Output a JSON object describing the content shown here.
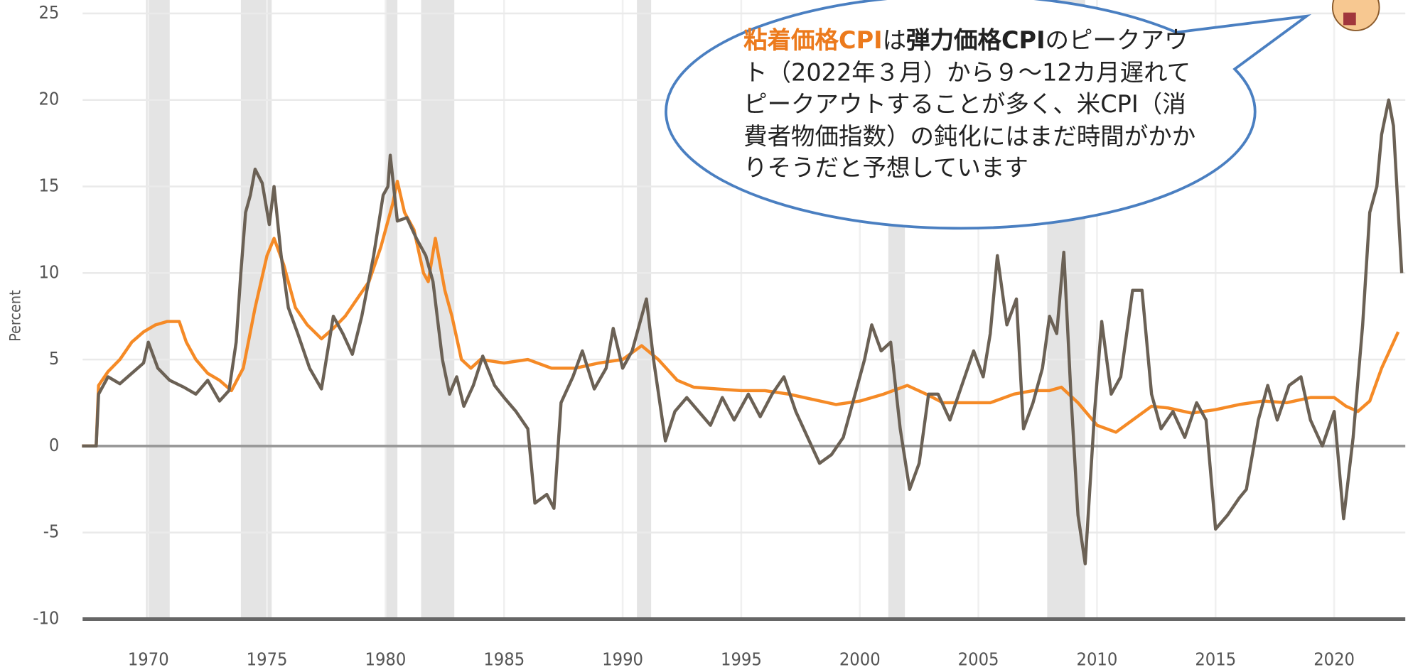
{
  "chart_data": {
    "type": "line",
    "y_label": "Percent",
    "annotation": [
      "粘着価格CPI",
      "は",
      "弾力価格CPI",
      "のピークアウト（2022年３月）から９～12カ月遅れてピークアウトすることが多く、米CPI（消費者物価指数）の鈍化にはまだ時間がかかりそうだと予想しています"
    ],
    "xlim": [
      1967,
      2023
    ],
    "xticks": [
      1970,
      1975,
      1980,
      1985,
      1990,
      1995,
      2000,
      2005,
      2010,
      2015,
      2020
    ],
    "ylim": [
      -10,
      25
    ],
    "yticks": [
      -10,
      -5,
      0,
      5,
      10,
      15,
      20,
      25
    ],
    "grid": true,
    "recession_color": "#e4e4e4",
    "recessions": [
      [
        1969.9,
        1970.9
      ],
      [
        1973.9,
        1975.2
      ],
      [
        1980.0,
        1980.5
      ],
      [
        1981.5,
        1982.9
      ],
      [
        1990.6,
        1991.2
      ],
      [
        2001.2,
        2001.9
      ],
      [
        2007.9,
        2009.5
      ]
    ],
    "series": [
      {
        "name": "粘着価格CPI",
        "color": "#f58a26",
        "x": [
          1967.2,
          1967.8,
          1967.9,
          1968.3,
          1968.8,
          1969.3,
          1969.8,
          1970.3,
          1970.8,
          1971.3,
          1971.6,
          1972.0,
          1972.5,
          1973.0,
          1973.5,
          1974.0,
          1974.5,
          1975.0,
          1975.3,
          1975.7,
          1976.2,
          1976.7,
          1977.3,
          1977.8,
          1978.3,
          1978.8,
          1979.3,
          1979.8,
          1980.3,
          1980.5,
          1980.8,
          1981.2,
          1981.6,
          1981.8,
          1982.1,
          1982.5,
          1982.8,
          1983.2,
          1983.6,
          1984.0,
          1985,
          1986,
          1987,
          1988,
          1989,
          1990,
          1990.8,
          1991.5,
          1992.3,
          1993,
          1994,
          1995,
          1996,
          1997,
          1998,
          1999,
          2000,
          2001,
          2002,
          2002.8,
          2003.5,
          2004.5,
          2005.5,
          2006.5,
          2007.3,
          2008,
          2008.5,
          2009.2,
          2010,
          2010.8,
          2011.5,
          2012.3,
          2013,
          2014,
          2015,
          2016,
          2017,
          2018,
          2019,
          2020,
          2020.5,
          2021,
          2021.5,
          2022,
          2022.7
        ],
        "values": [
          0,
          0,
          3.5,
          4.3,
          5.0,
          6.0,
          6.6,
          7.0,
          7.2,
          7.2,
          6.0,
          5.0,
          4.2,
          3.8,
          3.2,
          4.5,
          8.0,
          11.0,
          12.0,
          10.5,
          8.0,
          7.0,
          6.2,
          6.8,
          7.5,
          8.5,
          9.5,
          11.5,
          14.0,
          15.3,
          13.5,
          12.5,
          10.0,
          9.5,
          12.0,
          9.0,
          7.5,
          5.0,
          4.5,
          5.0,
          4.8,
          5.0,
          4.5,
          4.5,
          4.8,
          5.0,
          5.8,
          5.0,
          3.8,
          3.4,
          3.3,
          3.2,
          3.2,
          3.0,
          2.7,
          2.4,
          2.6,
          3.0,
          3.5,
          3.0,
          2.5,
          2.5,
          2.5,
          3.0,
          3.2,
          3.2,
          3.4,
          2.5,
          1.2,
          0.8,
          1.5,
          2.3,
          2.2,
          1.9,
          2.1,
          2.4,
          2.6,
          2.5,
          2.8,
          2.8,
          2.3,
          2.0,
          2.6,
          4.5,
          6.6
        ]
      },
      {
        "name": "弾力価格CPI",
        "color": "#6b6155",
        "x": [
          1967.2,
          1967.8,
          1967.9,
          1968.3,
          1968.8,
          1969.3,
          1969.8,
          1970.0,
          1970.4,
          1970.9,
          1971.5,
          1972.0,
          1972.5,
          1973.0,
          1973.4,
          1973.7,
          1973.9,
          1974.1,
          1974.3,
          1974.5,
          1974.8,
          1975.1,
          1975.3,
          1975.6,
          1975.9,
          1976.3,
          1976.8,
          1977.3,
          1977.8,
          1978.2,
          1978.6,
          1979.0,
          1979.5,
          1979.9,
          1980.1,
          1980.2,
          1980.5,
          1980.9,
          1981.3,
          1981.7,
          1982.0,
          1982.4,
          1982.7,
          1983.0,
          1983.3,
          1983.7,
          1984.1,
          1984.6,
          1985.0,
          1985.5,
          1986.0,
          1986.3,
          1986.8,
          1987.1,
          1987.4,
          1987.9,
          1988.3,
          1988.8,
          1989.3,
          1989.6,
          1990.0,
          1990.4,
          1990.8,
          1991.0,
          1991.3,
          1991.8,
          1992.2,
          1992.7,
          1993.2,
          1993.7,
          1994.2,
          1994.7,
          1995.3,
          1995.8,
          1996.3,
          1996.8,
          1997.3,
          1997.8,
          1998.3,
          1998.8,
          1999.3,
          1999.8,
          2000.2,
          2000.5,
          2000.9,
          2001.3,
          2001.7,
          2002.1,
          2002.5,
          2002.9,
          2003.3,
          2003.8,
          2004.3,
          2004.8,
          2005.2,
          2005.5,
          2005.8,
          2006.2,
          2006.6,
          2006.9,
          2007.3,
          2007.7,
          2008.0,
          2008.3,
          2008.6,
          2008.9,
          2009.2,
          2009.5,
          2009.9,
          2010.2,
          2010.6,
          2011.0,
          2011.5,
          2011.9,
          2012.3,
          2012.7,
          2013.2,
          2013.7,
          2014.2,
          2014.6,
          2015.0,
          2015.5,
          2016.0,
          2016.3,
          2016.8,
          2017.2,
          2017.6,
          2018.1,
          2018.6,
          2019.0,
          2019.5,
          2020.0,
          2020.4,
          2020.8,
          2021.2,
          2021.5,
          2021.8,
          2022.0,
          2022.3,
          2022.5,
          2022.85
        ],
        "values": [
          0,
          0,
          3,
          4,
          3.6,
          4.2,
          4.8,
          6.0,
          4.5,
          3.8,
          3.4,
          3.0,
          3.8,
          2.6,
          3.2,
          6,
          10,
          13.5,
          14.5,
          16.0,
          15.2,
          12.8,
          15.0,
          11,
          8,
          6.5,
          4.5,
          3.3,
          7.5,
          6.5,
          5.3,
          7.5,
          11.0,
          14.5,
          15,
          16.8,
          13.0,
          13.2,
          12.0,
          11,
          9.5,
          5,
          3.0,
          4.0,
          2.3,
          3.5,
          5.2,
          3.5,
          2.8,
          2.0,
          1.0,
          -3.3,
          -2.8,
          -3.6,
          2.5,
          4.0,
          5.5,
          3.3,
          4.5,
          6.8,
          4.5,
          5.5,
          7.5,
          8.5,
          5.0,
          0.3,
          2.0,
          2.8,
          2.0,
          1.2,
          2.8,
          1.5,
          3.0,
          1.7,
          3.0,
          4.0,
          2.0,
          0.5,
          -1.0,
          -0.5,
          0.5,
          3.0,
          5.0,
          7.0,
          5.5,
          6.0,
          1.0,
          -2.5,
          -1.0,
          3.0,
          3.0,
          1.5,
          3.5,
          5.5,
          4.0,
          6.5,
          11,
          7.0,
          8.5,
          1.0,
          2.5,
          4.5,
          7.5,
          6.5,
          11.2,
          3.0,
          -4.0,
          -6.8,
          2.0,
          7.2,
          3.0,
          4.0,
          9.0,
          9.0,
          3.0,
          1.0,
          2.0,
          0.5,
          2.5,
          1.5,
          -4.8,
          -4.0,
          -3.0,
          -2.5,
          1.5,
          3.5,
          1.5,
          3.5,
          4.0,
          1.5,
          0.0,
          2.0,
          -4.2,
          0.5,
          7.0,
          13.5,
          15,
          18,
          20.0,
          18.5,
          10.0
        ]
      }
    ]
  }
}
